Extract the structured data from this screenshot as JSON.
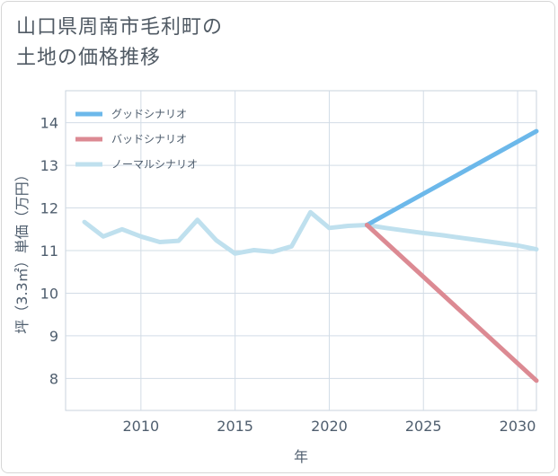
{
  "title": "山口県周南市毛利町の\n土地の価格推移",
  "chart_data": {
    "type": "line",
    "title": "山口県周南市毛利町の\n土地の価格推移",
    "xlabel": "年",
    "ylabel": "坪（3.3㎡）単価（万円）",
    "xlim": [
      2006,
      2031
    ],
    "ylim": [
      7.25,
      14.75
    ],
    "xticks": [
      2010,
      2015,
      2020,
      2025,
      2030
    ],
    "yticks": [
      8,
      9,
      10,
      11,
      12,
      13,
      14
    ],
    "grid": true,
    "legend_position": "top-left",
    "series": [
      {
        "name": "グッドシナリオ",
        "color": "#6cb8ea",
        "x": [
          2022,
          2031
        ],
        "y": [
          11.6,
          13.8
        ]
      },
      {
        "name": "バッドシナリオ",
        "color": "#dc8a93",
        "x": [
          2022,
          2031
        ],
        "y": [
          11.6,
          7.95
        ]
      },
      {
        "name": "ノーマルシナリオ",
        "color": "#bfe0ee",
        "x": [
          2007,
          2008,
          2009,
          2010,
          2011,
          2012,
          2013,
          2014,
          2015,
          2016,
          2017,
          2018,
          2019,
          2020,
          2021,
          2022,
          2023,
          2024,
          2025,
          2026,
          2027,
          2028,
          2029,
          2030,
          2031
        ],
        "y": [
          11.67,
          11.33,
          11.5,
          11.33,
          11.2,
          11.23,
          11.72,
          11.24,
          10.93,
          11.01,
          10.97,
          11.1,
          11.9,
          11.53,
          11.58,
          11.6,
          11.53,
          11.47,
          11.41,
          11.36,
          11.3,
          11.24,
          11.18,
          11.12,
          11.03
        ]
      }
    ]
  }
}
